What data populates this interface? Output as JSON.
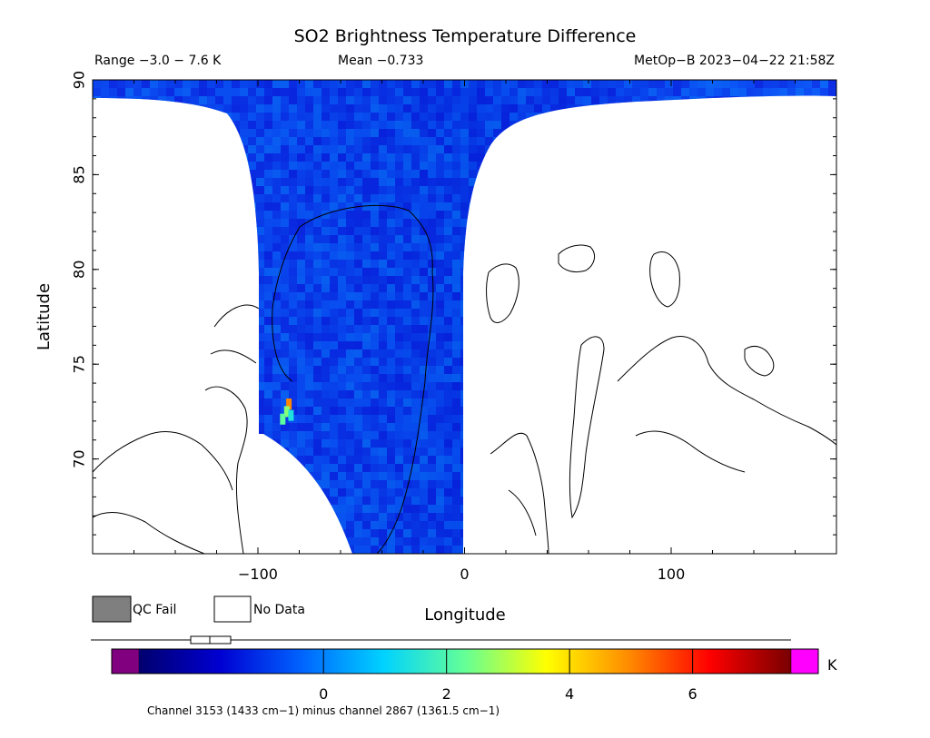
{
  "chart_data": {
    "type": "heatmap",
    "title": "SO2 Brightness Temperature Difference",
    "subtitle_range": "Range −3.0 − 7.6 K",
    "subtitle_mean": "Mean −0.733",
    "subtitle_source": "MetOp−B 2023−04−22 21:58Z",
    "xlabel": "Longitude",
    "ylabel": "Latitude",
    "xlim": [
      -180,
      180
    ],
    "ylim": [
      65,
      90
    ],
    "x_ticks": [
      {
        "value": -100,
        "label": "−100"
      },
      {
        "value": 0,
        "label": "0"
      },
      {
        "value": 100,
        "label": "100"
      }
    ],
    "y_ticks": [
      {
        "value": 70,
        "label": "70"
      },
      {
        "value": 75,
        "label": "75"
      },
      {
        "value": 80,
        "label": "80"
      },
      {
        "value": 85,
        "label": "85"
      },
      {
        "value": 90,
        "label": "90"
      }
    ],
    "swath": {
      "lon_west": -100,
      "lon_east": 0,
      "lat_min": 65,
      "lat_max": 90,
      "typical_value": -0.7
    },
    "hotspots": [
      {
        "lon": -85,
        "lat": 72.9,
        "value": 5.0
      },
      {
        "lon": -86,
        "lat": 72.5,
        "value": 2.6
      },
      {
        "lon": -88,
        "lat": 72.1,
        "value": 2.2
      },
      {
        "lon": -84,
        "lat": 72.3,
        "value": 1.4
      }
    ],
    "legend": [
      {
        "label": "QC Fail",
        "color": "#7f7f7f"
      },
      {
        "label": "No Data",
        "color": "#ffffff"
      }
    ],
    "colorbar": {
      "unit": "K",
      "range": [
        -3.0,
        7.6
      ],
      "ticks": [
        {
          "value": 0,
          "label": "0"
        },
        {
          "value": 2,
          "label": "2"
        },
        {
          "value": 4,
          "label": "4"
        },
        {
          "value": 6,
          "label": "6"
        }
      ],
      "colors": [
        "#00006e",
        "#0000d2",
        "#0064ff",
        "#00d2ff",
        "#64ff96",
        "#ffff00",
        "#ff8c00",
        "#ff0000",
        "#780000"
      ],
      "under_color": "#800080",
      "over_color": "#ff00ff"
    },
    "footer": "Channel 3153 (1433 cm−1) minus channel 2867 (1361.5 cm−1)"
  }
}
